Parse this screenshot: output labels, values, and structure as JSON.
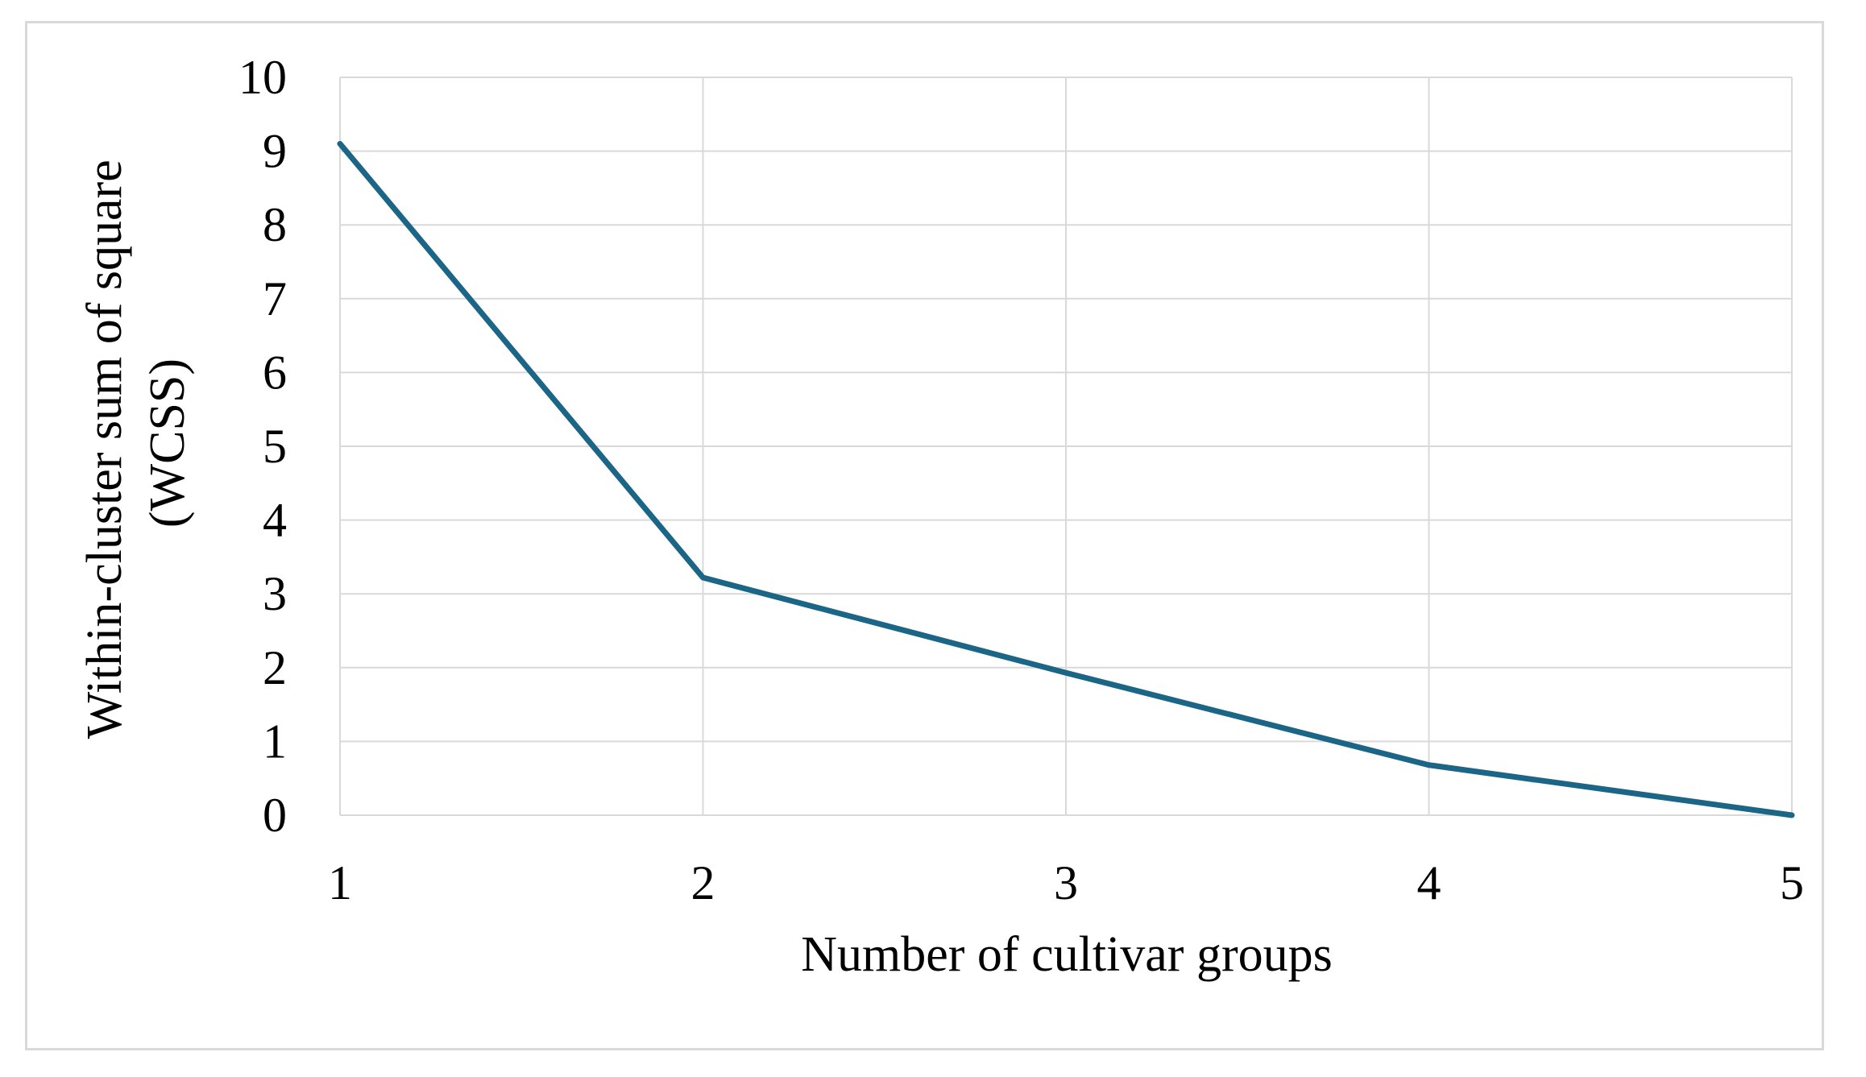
{
  "chart_data": {
    "type": "line",
    "title": "",
    "xlabel": "Number of cultivar groups",
    "ylabel_lines": [
      "Within-cluster sum of square",
      "(WCSS)"
    ],
    "x": [
      1,
      2,
      3,
      4,
      5
    ],
    "series": [
      {
        "values": [
          9.1,
          3.22,
          1.93,
          0.68,
          0.0
        ]
      }
    ],
    "xlim": [
      1,
      5
    ],
    "ylim": [
      0,
      10
    ],
    "x_ticks": [
      "1",
      "2",
      "3",
      "4",
      "5"
    ],
    "y_ticks": [
      "0",
      "1",
      "2",
      "3",
      "4",
      "5",
      "6",
      "7",
      "8",
      "9",
      "10"
    ],
    "grid": true,
    "legend": "none",
    "colors": {
      "line": "#1b6587",
      "grid": "#d9d9d9",
      "frame": "#d9d9d9"
    }
  }
}
